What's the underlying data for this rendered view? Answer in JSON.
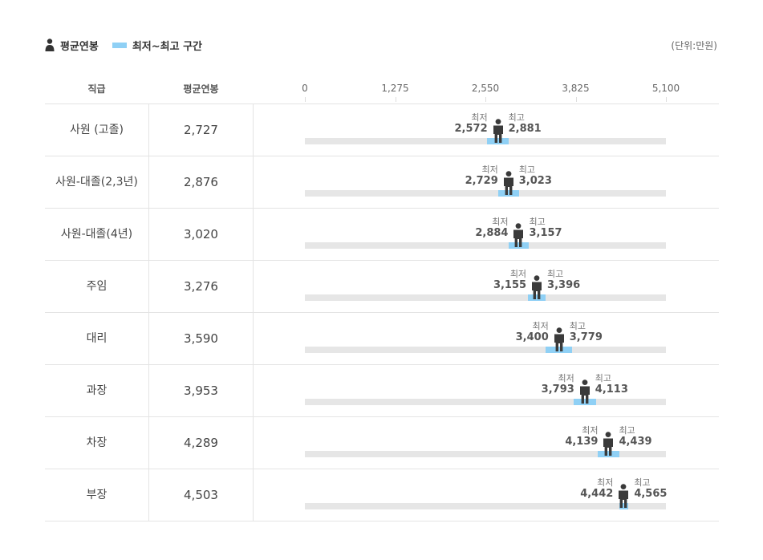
{
  "legend": {
    "avg_label": "평균연봉",
    "range_label": "최저~최고 구간"
  },
  "unit": "(단위:만원)",
  "headers": {
    "rank": "직급",
    "avg": "평균연봉"
  },
  "chart_data": {
    "type": "range-dot",
    "axis_min": 0,
    "axis_max": 5100,
    "ticks": [
      "0",
      "1,275",
      "2,550",
      "3,825",
      "5,100"
    ],
    "tick_values": [
      0,
      1275,
      2550,
      3825,
      5100
    ],
    "min_label": "최저",
    "max_label": "최고",
    "range_color": "#8fd0f5",
    "track_color": "#e6e6e6",
    "rows": [
      {
        "rank": "사원 (고졸)",
        "avg_text": "2,727",
        "avg": 2727,
        "min_text": "2,572",
        "min": 2572,
        "max_text": "2,881",
        "max": 2881
      },
      {
        "rank": "사원-대졸(2,3년)",
        "avg_text": "2,876",
        "avg": 2876,
        "min_text": "2,729",
        "min": 2729,
        "max_text": "3,023",
        "max": 3023
      },
      {
        "rank": "사원-대졸(4년)",
        "avg_text": "3,020",
        "avg": 3020,
        "min_text": "2,884",
        "min": 2884,
        "max_text": "3,157",
        "max": 3157
      },
      {
        "rank": "주임",
        "avg_text": "3,276",
        "avg": 3276,
        "min_text": "3,155",
        "min": 3155,
        "max_text": "3,396",
        "max": 3396
      },
      {
        "rank": "대리",
        "avg_text": "3,590",
        "avg": 3590,
        "min_text": "3,400",
        "min": 3400,
        "max_text": "3,779",
        "max": 3779
      },
      {
        "rank": "과장",
        "avg_text": "3,953",
        "avg": 3953,
        "min_text": "3,793",
        "min": 3793,
        "max_text": "4,113",
        "max": 4113
      },
      {
        "rank": "차장",
        "avg_text": "4,289",
        "avg": 4289,
        "min_text": "4,139",
        "min": 4139,
        "max_text": "4,439",
        "max": 4439
      },
      {
        "rank": "부장",
        "avg_text": "4,503",
        "avg": 4503,
        "min_text": "4,442",
        "min": 4442,
        "max_text": "4,565",
        "max": 4565
      }
    ]
  }
}
